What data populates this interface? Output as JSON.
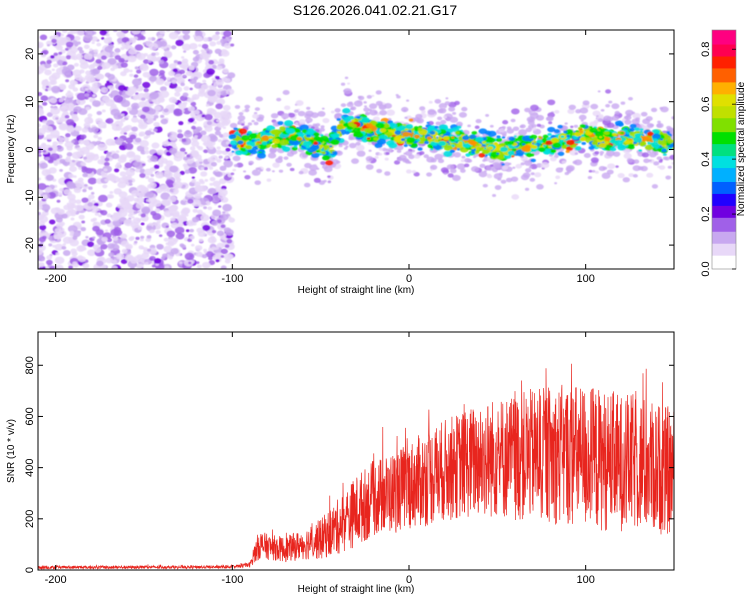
{
  "title": "S126.2026.041.02.21.G17",
  "chart_data": [
    {
      "type": "heatmap",
      "name": "spectrogram",
      "xlabel": "Height of straight line (km)",
      "ylabel": "Frequency (Hz)",
      "xlim": [
        -210,
        150
      ],
      "ylim": [
        -25,
        25
      ],
      "x_ticks": [
        -200,
        -100,
        0,
        100
      ],
      "y_ticks": [
        -20,
        -10,
        0,
        10,
        20
      ],
      "x_tick_labels": [
        "-200",
        "-100",
        "0",
        "100"
      ],
      "y_tick_labels": [
        "-20",
        "-10",
        "0",
        "10",
        "20"
      ],
      "noise_region_km": [
        -210,
        -100
      ],
      "signal_region_km": [
        -100,
        150
      ],
      "signal_ridge": {
        "x": [
          -100,
          -90,
          -80,
          -70,
          -60,
          -50,
          -45,
          -40,
          -35,
          -30,
          -20,
          -10,
          0,
          10,
          20,
          30,
          40,
          50,
          60,
          70,
          80,
          90,
          100,
          110,
          120,
          130,
          140,
          150
        ],
        "freq": [
          2,
          1,
          2,
          3,
          2,
          1,
          0,
          4,
          6,
          5,
          4,
          3,
          3,
          3,
          2,
          2,
          1,
          0,
          0,
          1,
          1,
          2,
          3,
          2,
          3,
          2,
          2,
          1
        ]
      },
      "colorbar": {
        "label": "Normalized spectral amplitude",
        "range": [
          0,
          0.87
        ],
        "ticks": [
          0.0,
          0.2,
          0.4,
          0.6,
          0.8
        ],
        "tick_labels": [
          "0.0",
          "0.2",
          "0.4",
          "0.6",
          "0.8"
        ],
        "colors": [
          "#e8d8f8",
          "#c8a8f0",
          "#a060e8",
          "#7000e0",
          "#2000ff",
          "#0080ff",
          "#00e0e0",
          "#00e000",
          "#a0e000",
          "#e0e000",
          "#ff9000",
          "#ff2000",
          "#ff0080"
        ]
      }
    },
    {
      "type": "line",
      "name": "snr",
      "xlabel": "Height of straight line (km)",
      "ylabel": "SNR (10 * v/v)",
      "xlim": [
        -210,
        150
      ],
      "ylim": [
        0,
        930
      ],
      "x_ticks": [
        -200,
        -100,
        0,
        100
      ],
      "y_ticks": [
        0,
        200,
        400,
        600,
        800
      ],
      "x_tick_labels": [
        "-200",
        "-100",
        "0",
        "100"
      ],
      "y_tick_labels": [
        "0",
        "200",
        "400",
        "600",
        "800"
      ],
      "color": "#e8251e",
      "envelope": {
        "x": [
          -210,
          -100,
          -90,
          -85,
          -80,
          -70,
          -60,
          -50,
          -40,
          -30,
          -20,
          -10,
          0,
          10,
          20,
          30,
          40,
          50,
          60,
          70,
          80,
          90,
          100,
          110,
          120,
          130,
          140,
          150
        ],
        "mean": [
          10,
          12,
          20,
          100,
          90,
          80,
          100,
          120,
          170,
          230,
          280,
          300,
          330,
          360,
          390,
          410,
          430,
          440,
          440,
          450,
          450,
          450,
          440,
          430,
          420,
          420,
          400,
          380
        ],
        "amplitude": [
          6,
          6,
          10,
          60,
          50,
          50,
          60,
          80,
          110,
          140,
          150,
          160,
          170,
          190,
          200,
          210,
          230,
          240,
          250,
          260,
          270,
          280,
          290,
          280,
          270,
          270,
          260,
          250
        ]
      }
    }
  ]
}
